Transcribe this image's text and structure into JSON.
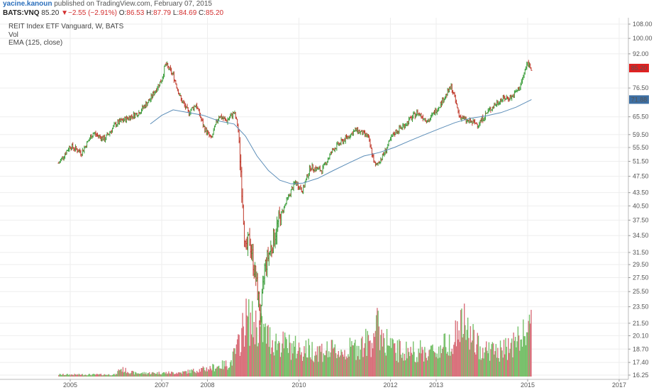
{
  "header": {
    "author": "yacine.kanoun",
    "published": "published on TradingView.com, February 07, 2015"
  },
  "quote": {
    "symbol": "BATS:VNQ",
    "last": "85.20",
    "change_arrow": "▼",
    "change": "−2.55 (−2.91%)",
    "open_label": "O:",
    "open": "86.53",
    "high_label": "H:",
    "high": "87.79",
    "low_label": "L:",
    "low": "84.69",
    "close_label": "C:",
    "close": "85.20"
  },
  "colors": {
    "up": "#3c9e3c",
    "down": "#c0392b",
    "bar_up": "#77c06a",
    "bar_down": "#d9707b",
    "ema": "#5b8db8",
    "price_badge": "#e02020",
    "ema_badge": "#3d6fa3",
    "grid": "#eeeeee"
  },
  "legend": {
    "title": "REIT Index ETF Vanguard, W, BATS",
    "vol": "Vol",
    "ema": "EMA (125, close)"
  },
  "chart_data": {
    "type": "candlestick",
    "series": [
      {
        "name": "REIT Index ETF Vanguard, W, BATS",
        "kind": "ohlc"
      },
      {
        "name": "EMA (125, close)",
        "kind": "line"
      },
      {
        "name": "Vol",
        "kind": "volume"
      }
    ],
    "x_axis_ticks": [
      "2005",
      "2007",
      "2008",
      "2010",
      "2012",
      "2013",
      "2015",
      "2017"
    ],
    "y_axis_ticks": [
      "108.00",
      "100.00",
      "92.00",
      "85.20",
      "76.50",
      "71.88",
      "65.50",
      "59.50",
      "55.50",
      "51.50",
      "47.50",
      "43.50",
      "40.50",
      "37.50",
      "34.50",
      "31.50",
      "29.50",
      "27.50",
      "25.50",
      "23.50",
      "21.50",
      "20.10",
      "18.70",
      "17.40",
      "16.25"
    ],
    "y_scale": "log",
    "ylim": [
      16.25,
      108.0
    ],
    "price_label": "85.20",
    "ema_label": "71.88",
    "price_path": [
      [
        "2004-10",
        51
      ],
      [
        "2005-01",
        56
      ],
      [
        "2005-04",
        54
      ],
      [
        "2005-07",
        60
      ],
      [
        "2005-10",
        58
      ],
      [
        "2006-01",
        63
      ],
      [
        "2006-04",
        65
      ],
      [
        "2006-07",
        67
      ],
      [
        "2006-10",
        72
      ],
      [
        "2007-01",
        80
      ],
      [
        "2007-02",
        87
      ],
      [
        "2007-04",
        82
      ],
      [
        "2007-06",
        72
      ],
      [
        "2007-08",
        67
      ],
      [
        "2007-10",
        70
      ],
      [
        "2007-12",
        62
      ],
      [
        "2008-02",
        58
      ],
      [
        "2008-04",
        66
      ],
      [
        "2008-06",
        64
      ],
      [
        "2008-08",
        67
      ],
      [
        "2008-09",
        62
      ],
      [
        "2008-10",
        45
      ],
      [
        "2008-11",
        31
      ],
      [
        "2008-12",
        34
      ],
      [
        "2009-02",
        26
      ],
      [
        "2009-03",
        22
      ],
      [
        "2009-04",
        29
      ],
      [
        "2009-06",
        33
      ],
      [
        "2009-08",
        38
      ],
      [
        "2009-10",
        42
      ],
      [
        "2009-12",
        46
      ],
      [
        "2010-02",
        44
      ],
      [
        "2010-04",
        50
      ],
      [
        "2010-07",
        49
      ],
      [
        "2010-10",
        55
      ],
      [
        "2011-01",
        58
      ],
      [
        "2011-04",
        61
      ],
      [
        "2011-07",
        59
      ],
      [
        "2011-09",
        50
      ],
      [
        "2011-11",
        53
      ],
      [
        "2012-02",
        60
      ],
      [
        "2012-05",
        63
      ],
      [
        "2012-08",
        67
      ],
      [
        "2012-11",
        64
      ],
      [
        "2013-02",
        70
      ],
      [
        "2013-05",
        77
      ],
      [
        "2013-07",
        66
      ],
      [
        "2013-09",
        64
      ],
      [
        "2013-12",
        63
      ],
      [
        "2014-03",
        68
      ],
      [
        "2014-06",
        72
      ],
      [
        "2014-09",
        73
      ],
      [
        "2014-11",
        77
      ],
      [
        "2015-01",
        87.8
      ],
      [
        "2015-02",
        85.2
      ]
    ],
    "ema_path": [
      [
        "2006-10",
        63
      ],
      [
        "2007-01",
        66
      ],
      [
        "2007-04",
        68
      ],
      [
        "2007-08",
        67
      ],
      [
        "2007-12",
        66
      ],
      [
        "2008-04",
        64
      ],
      [
        "2008-08",
        63
      ],
      [
        "2008-11",
        59
      ],
      [
        "2009-02",
        53
      ],
      [
        "2009-05",
        49
      ],
      [
        "2009-08",
        46.5
      ],
      [
        "2009-11",
        45.6
      ],
      [
        "2010-02",
        45.8
      ],
      [
        "2010-06",
        47
      ],
      [
        "2010-10",
        49
      ],
      [
        "2011-02",
        51
      ],
      [
        "2011-06",
        53
      ],
      [
        "2011-10",
        54
      ],
      [
        "2012-02",
        55.5
      ],
      [
        "2012-06",
        57.5
      ],
      [
        "2012-10",
        59.5
      ],
      [
        "2013-02",
        61.5
      ],
      [
        "2013-06",
        63.5
      ],
      [
        "2013-10",
        65
      ],
      [
        "2014-02",
        65.8
      ],
      [
        "2014-06",
        67
      ],
      [
        "2014-10",
        69
      ],
      [
        "2015-02",
        71.88
      ]
    ],
    "volume_profile": [
      [
        "2004-10",
        0.03
      ],
      [
        "2006-01",
        0.03
      ],
      [
        "2006-02",
        0.12
      ],
      [
        "2006-06",
        0.05
      ],
      [
        "2007-06",
        0.06
      ],
      [
        "2008-01",
        0.12
      ],
      [
        "2008-07",
        0.2
      ],
      [
        "2008-09",
        0.45
      ],
      [
        "2008-11",
        0.88
      ],
      [
        "2009-02",
        0.78
      ],
      [
        "2009-06",
        0.55
      ],
      [
        "2010-01",
        0.42
      ],
      [
        "2011-01",
        0.38
      ],
      [
        "2011-08",
        0.55
      ],
      [
        "2011-09",
        0.78
      ],
      [
        "2012-02",
        0.4
      ],
      [
        "2013-01",
        0.38
      ],
      [
        "2013-06",
        0.62
      ],
      [
        "2013-08",
        0.82
      ],
      [
        "2013-12",
        0.45
      ],
      [
        "2014-06",
        0.38
      ],
      [
        "2014-12",
        0.62
      ],
      [
        "2015-01",
        0.85
      ],
      [
        "2015-02",
        0.72
      ]
    ],
    "grid": true,
    "legend_position": "top-left"
  }
}
